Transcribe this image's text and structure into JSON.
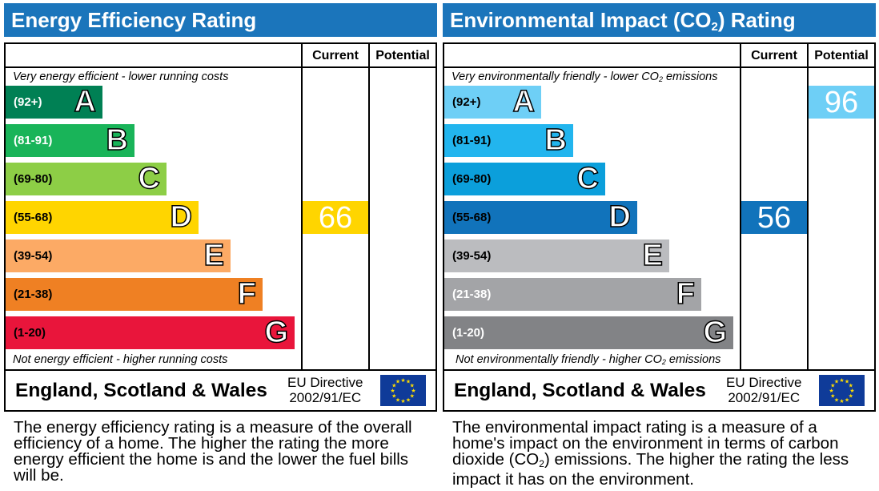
{
  "energy": {
    "title": "Energy Efficiency Rating",
    "col_current": "Current",
    "col_potential": "Potential",
    "top_caption": "Very energy efficient - lower running costs",
    "bottom_caption": "Not energy efficient - higher running costs",
    "bands": [
      {
        "range": "(92+)",
        "letter": "A",
        "color": "#008054",
        "range_color": "#ffffff"
      },
      {
        "range": "(81-91)",
        "letter": "B",
        "color": "#19b459",
        "range_color": "#ffffff"
      },
      {
        "range": "(69-80)",
        "letter": "C",
        "color": "#8dce46",
        "range_color": "#000000"
      },
      {
        "range": "(55-68)",
        "letter": "D",
        "color": "#ffd500",
        "range_color": "#000000"
      },
      {
        "range": "(39-54)",
        "letter": "E",
        "color": "#fcaa65",
        "range_color": "#000000"
      },
      {
        "range": "(21-38)",
        "letter": "F",
        "color": "#ef8023",
        "range_color": "#000000"
      },
      {
        "range": "(1-20)",
        "letter": "G",
        "color": "#e9153b",
        "range_color": "#000000"
      }
    ],
    "current": {
      "value": "66",
      "band": "D",
      "color": "#ffd500"
    },
    "potential": null,
    "region": "England, Scotland & Wales",
    "directive_line1": "EU Directive",
    "directive_line2": "2002/91/EC",
    "description": "The energy efficiency rating is a measure of the overall efficiency of a home. The higher the rating the more energy efficient the home is and the lower the fuel bills will be."
  },
  "environment": {
    "title_pre": "Environmental Impact (CO",
    "title_sub": "2",
    "title_post": ") Rating",
    "col_current": "Current",
    "col_potential": "Potential",
    "top_caption_pre": "Very environmentally friendly - lower CO",
    "top_caption_sub": "2",
    "top_caption_post": " emissions",
    "bottom_caption_pre": "Not environmentally friendly - higher CO",
    "bottom_caption_sub": "2",
    "bottom_caption_post": " emissions",
    "bands": [
      {
        "range": "(92+)",
        "letter": "A",
        "color": "#6ecff6",
        "range_color": "#000000"
      },
      {
        "range": "(81-91)",
        "letter": "B",
        "color": "#22b5ee",
        "range_color": "#000000"
      },
      {
        "range": "(69-80)",
        "letter": "C",
        "color": "#0b9fdb",
        "range_color": "#000000"
      },
      {
        "range": "(55-68)",
        "letter": "D",
        "color": "#1173bb",
        "range_color": "#000000"
      },
      {
        "range": "(39-54)",
        "letter": "E",
        "color": "#bbbcbf",
        "range_color": "#000000"
      },
      {
        "range": "(21-38)",
        "letter": "F",
        "color": "#a3a4a7",
        "range_color": "#ffffff"
      },
      {
        "range": "(1-20)",
        "letter": "G",
        "color": "#828386",
        "range_color": "#ffffff"
      }
    ],
    "current": {
      "value": "56",
      "band": "D",
      "color": "#1173bb"
    },
    "potential": {
      "value": "96",
      "band": "A",
      "color": "#6ecff6"
    },
    "region": "England, Scotland & Wales",
    "directive_line1": "EU Directive",
    "directive_line2": "2002/91/EC",
    "description_pre": "The environmental impact rating is a measure of a home's impact on the environment in terms of carbon dioxide (CO",
    "description_sub": "2",
    "description_post": ") emissions. The higher the rating the less impact it has on the environment."
  }
}
